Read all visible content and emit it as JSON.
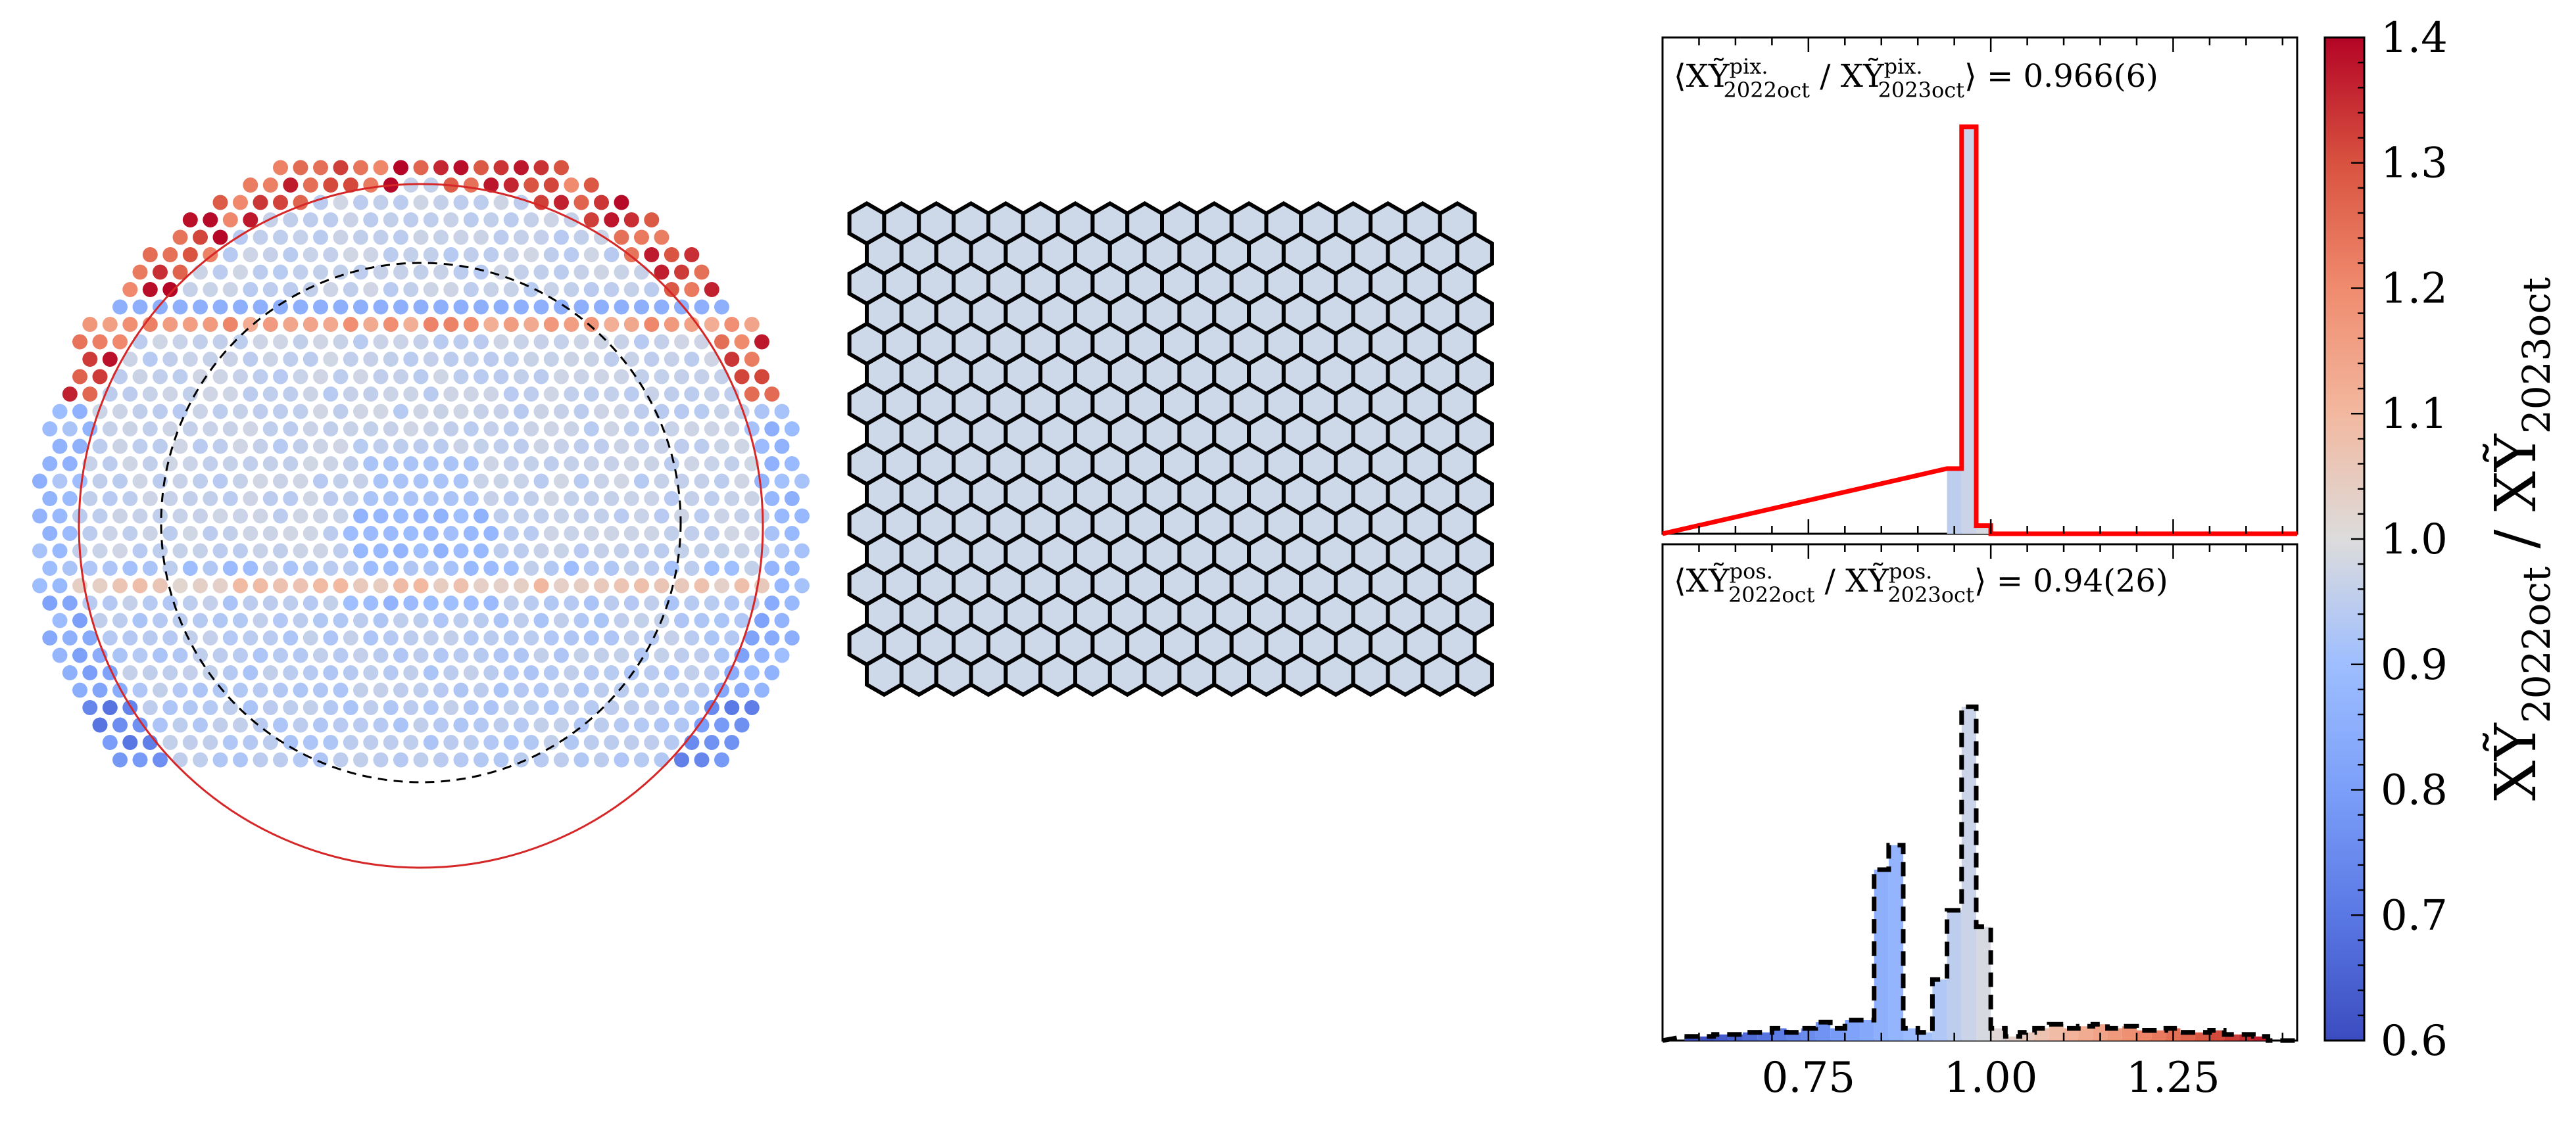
{
  "colors": {
    "cmap_low": "#3b4cc0",
    "cmap_mid": "#dddddd",
    "cmap_high": "#b40426",
    "hist_pix_line": "#ff0000",
    "hist_pos_line": "#000000",
    "detector_circle": "#d62728",
    "hex_fill": "#cdd8e8"
  },
  "chart_data": [
    {
      "type": "heatmap",
      "name": "pixel detector map",
      "description": "hexagonal pixel map colored by ratio",
      "color_range": [
        0.6,
        1.4
      ],
      "rows": 35,
      "features": {
        "outer_ring_high_ratio": true,
        "horizontal_stripes_rows": [
          9,
          23
        ],
        "dashed_inner_circle": true,
        "red_boundary_circle": true,
        "bottom_low_ratio": true
      }
    },
    {
      "type": "heatmap",
      "name": "uniform hexagonal grid",
      "rows": 16,
      "cols": 18,
      "value": 0.97
    },
    {
      "type": "bar",
      "name": "pixel histogram",
      "annotation": "⟨XỸ^pix._2022oct / XỸ^pix._2023oct⟩ = 0.966(6)",
      "annotation_left": "⟨XỸ",
      "annotation_sup1": "pix.",
      "annotation_sub1": "2022oct",
      "annotation_mid": " / XỸ",
      "annotation_sup2": "pix.",
      "annotation_sub2": "2023oct",
      "annotation_right": "⟩ = 0.966(6)",
      "style": "step",
      "line_color": "#ff0000",
      "xlim": [
        0.55,
        1.42
      ],
      "bins": [
        {
          "x0": 0.94,
          "x1": 0.96,
          "count": 0.16
        },
        {
          "x0": 0.96,
          "x1": 0.98,
          "count": 1.0
        },
        {
          "x0": 0.98,
          "x1": 1.0,
          "count": 0.02
        }
      ]
    },
    {
      "type": "bar",
      "name": "position histogram",
      "annotation_left": "⟨XỸ",
      "annotation_sup1": "pos.",
      "annotation_sub1": "2022oct",
      "annotation_mid": " / XỸ",
      "annotation_sup2": "pos.",
      "annotation_sub2": "2023oct",
      "annotation_right": "⟩ = 0.94(26)",
      "style": "step",
      "line_dash": "dashed",
      "line_color": "#000000",
      "xlim": [
        0.55,
        1.42
      ],
      "xticks": [
        "0.75",
        "1.00",
        "1.25"
      ],
      "xtick_values": [
        0.75,
        1.0,
        1.25
      ],
      "bins": [
        {
          "x0": 0.58,
          "x1": 0.6,
          "count": 0.01
        },
        {
          "x0": 0.6,
          "x1": 0.62,
          "count": 0.01
        },
        {
          "x0": 0.62,
          "x1": 0.64,
          "count": 0.015
        },
        {
          "x0": 0.64,
          "x1": 0.66,
          "count": 0.015
        },
        {
          "x0": 0.66,
          "x1": 0.68,
          "count": 0.02
        },
        {
          "x0": 0.68,
          "x1": 0.7,
          "count": 0.02
        },
        {
          "x0": 0.7,
          "x1": 0.72,
          "count": 0.03
        },
        {
          "x0": 0.72,
          "x1": 0.74,
          "count": 0.02
        },
        {
          "x0": 0.74,
          "x1": 0.76,
          "count": 0.03
        },
        {
          "x0": 0.76,
          "x1": 0.78,
          "count": 0.045
        },
        {
          "x0": 0.78,
          "x1": 0.8,
          "count": 0.03
        },
        {
          "x0": 0.8,
          "x1": 0.82,
          "count": 0.05
        },
        {
          "x0": 0.82,
          "x1": 0.84,
          "count": 0.05
        },
        {
          "x0": 0.84,
          "x1": 0.86,
          "count": 0.42
        },
        {
          "x0": 0.86,
          "x1": 0.88,
          "count": 0.48
        },
        {
          "x0": 0.88,
          "x1": 0.9,
          "count": 0.03
        },
        {
          "x0": 0.9,
          "x1": 0.92,
          "count": 0.02
        },
        {
          "x0": 0.92,
          "x1": 0.94,
          "count": 0.15
        },
        {
          "x0": 0.94,
          "x1": 0.96,
          "count": 0.32
        },
        {
          "x0": 0.96,
          "x1": 0.98,
          "count": 0.82
        },
        {
          "x0": 0.98,
          "x1": 1.0,
          "count": 0.28
        },
        {
          "x0": 1.0,
          "x1": 1.02,
          "count": 0.03
        },
        {
          "x0": 1.02,
          "x1": 1.04,
          "count": 0.01
        },
        {
          "x0": 1.04,
          "x1": 1.06,
          "count": 0.02
        },
        {
          "x0": 1.06,
          "x1": 1.08,
          "count": 0.03
        },
        {
          "x0": 1.08,
          "x1": 1.1,
          "count": 0.04
        },
        {
          "x0": 1.1,
          "x1": 1.12,
          "count": 0.03
        },
        {
          "x0": 1.12,
          "x1": 1.14,
          "count": 0.035
        },
        {
          "x0": 1.14,
          "x1": 1.16,
          "count": 0.04
        },
        {
          "x0": 1.16,
          "x1": 1.18,
          "count": 0.03
        },
        {
          "x0": 1.18,
          "x1": 1.2,
          "count": 0.035
        },
        {
          "x0": 1.2,
          "x1": 1.22,
          "count": 0.025
        },
        {
          "x0": 1.22,
          "x1": 1.24,
          "count": 0.025
        },
        {
          "x0": 1.24,
          "x1": 1.26,
          "count": 0.03
        },
        {
          "x0": 1.26,
          "x1": 1.28,
          "count": 0.02
        },
        {
          "x0": 1.28,
          "x1": 1.3,
          "count": 0.02
        },
        {
          "x0": 1.3,
          "x1": 1.32,
          "count": 0.025
        },
        {
          "x0": 1.32,
          "x1": 1.34,
          "count": 0.015
        },
        {
          "x0": 1.34,
          "x1": 1.36,
          "count": 0.015
        },
        {
          "x0": 1.36,
          "x1": 1.38,
          "count": 0.01
        }
      ]
    },
    {
      "type": "heatmap",
      "name": "colorbar",
      "range": [
        0.6,
        1.4
      ],
      "ticks": [
        "0.6",
        "0.7",
        "0.8",
        "0.9",
        "1.0",
        "1.1",
        "1.2",
        "1.3",
        "1.4"
      ],
      "tick_values": [
        0.6,
        0.7,
        0.8,
        0.9,
        1.0,
        1.1,
        1.2,
        1.3,
        1.4
      ],
      "label_main": "XỸ",
      "label_sub1": "2022oct",
      "label_sep": " / ",
      "label_sub2": "2023oct"
    }
  ]
}
